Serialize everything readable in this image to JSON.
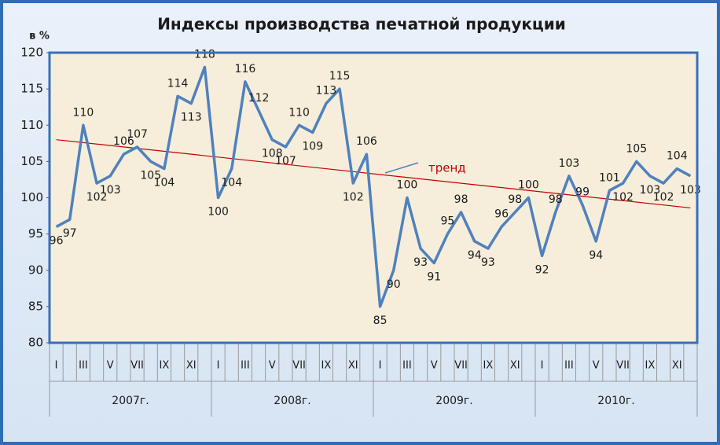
{
  "chart_data": {
    "type": "line",
    "title": "Индексы производства печатной продукции",
    "y_label": "в %",
    "categories": [
      "I",
      null,
      "III",
      null,
      "V",
      null,
      "VII",
      null,
      "IX",
      null,
      "XI",
      null,
      "I",
      null,
      "III",
      null,
      "V",
      null,
      "VII",
      null,
      "IX",
      null,
      "XI",
      null,
      "I",
      null,
      "III",
      null,
      "V",
      null,
      "VII",
      null,
      "IX",
      null,
      "XI",
      null,
      "I",
      null,
      "III",
      null,
      "V",
      null,
      "VII",
      null,
      "IX",
      null,
      "XI",
      null
    ],
    "groups": [
      "2007г.",
      "2008г.",
      "2009г.",
      "2010г."
    ],
    "series": [
      {
        "color": "#4f81bd",
        "values": [
          96,
          97,
          110,
          102,
          103,
          106,
          107,
          105,
          104,
          114,
          113,
          118,
          100,
          104,
          116,
          112,
          108,
          107,
          110,
          109,
          113,
          115,
          102,
          106,
          85,
          90,
          100,
          93,
          91,
          95,
          98,
          94,
          93,
          96,
          98,
          100,
          92,
          98,
          103,
          99,
          94,
          101,
          102,
          105,
          103,
          102,
          104,
          103
        ]
      }
    ],
    "trend": {
      "label": "тренд",
      "color": "#c00000",
      "from": 108,
      "to": 98.6
    },
    "ylim": [
      80,
      120
    ],
    "yticks": [
      80,
      85,
      90,
      95,
      100,
      105,
      110,
      115,
      120
    ],
    "grid": false
  }
}
